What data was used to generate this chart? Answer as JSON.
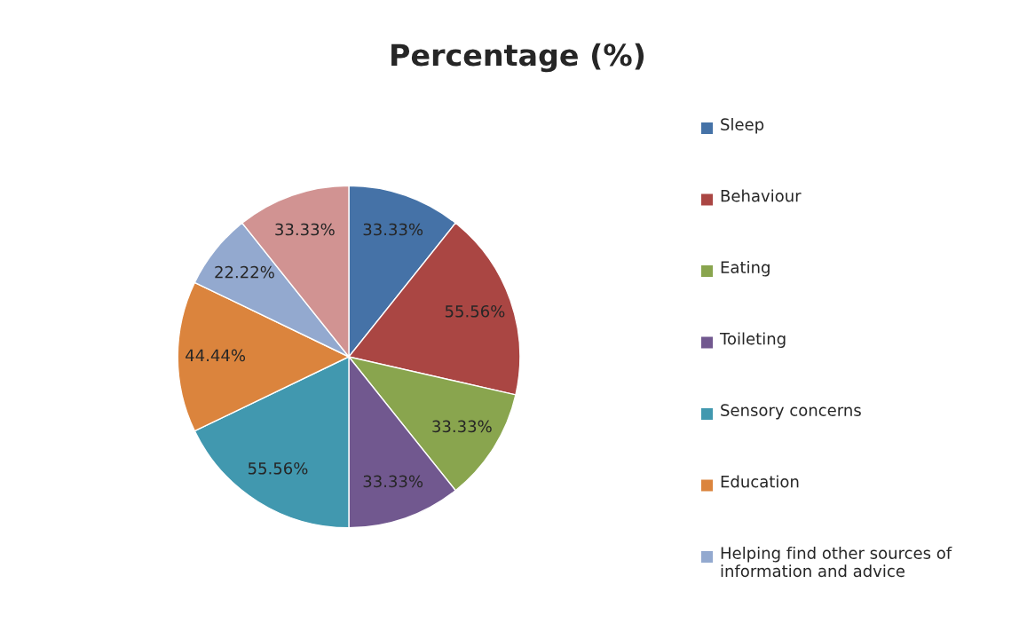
{
  "chart_data": {
    "type": "pie",
    "title": "Percentage (%)",
    "categories": [
      "Sleep",
      "Behaviour",
      "Eating",
      "Toileting",
      "Sensory concerns",
      "Education",
      "Helping find other sources of information and advice",
      null
    ],
    "values": [
      33.33,
      55.56,
      33.33,
      33.33,
      55.56,
      44.44,
      22.22,
      33.33
    ],
    "value_labels": [
      "33.33%",
      "55.56%",
      "33.33%",
      "33.33%",
      "55.56%",
      "44.44%",
      "22.22%",
      "33.33%"
    ],
    "colors": [
      "#4572a7",
      "#aa4643",
      "#89a54e",
      "#71588f",
      "#4198af",
      "#db843d",
      "#93a9cf",
      "#d19392"
    ],
    "legend": "right"
  }
}
